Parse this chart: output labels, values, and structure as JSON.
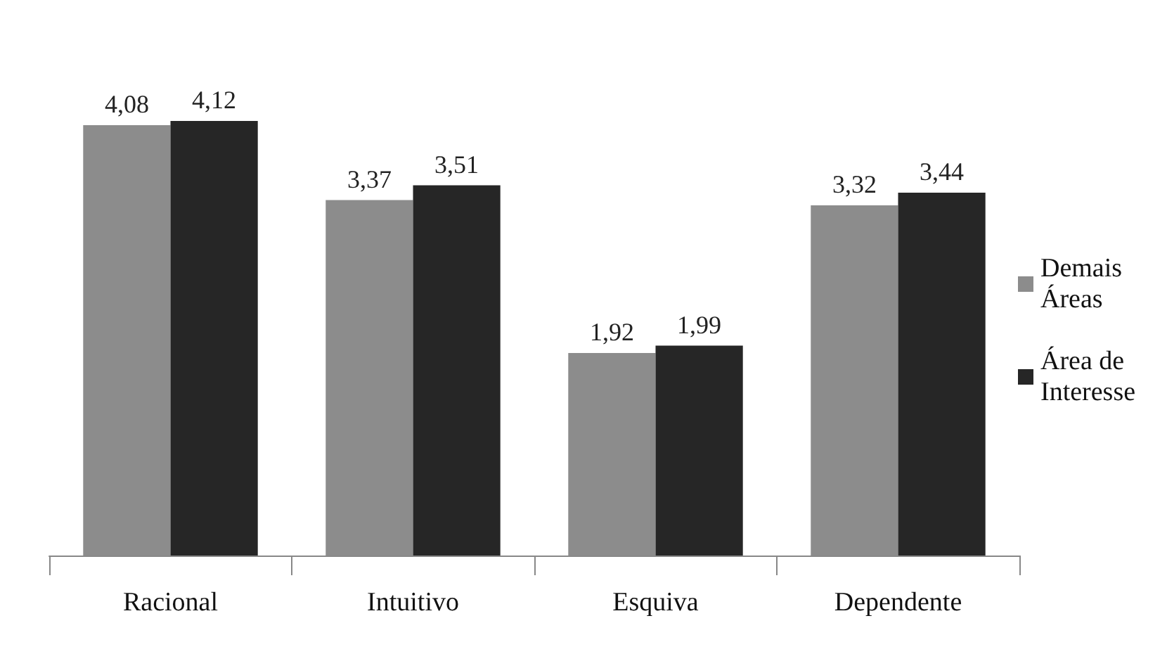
{
  "chart_data": {
    "type": "bar",
    "categories": [
      "Racional",
      "Intuitivo",
      "Esquiva",
      "Dependente"
    ],
    "series": [
      {
        "name": "Demais Áreas",
        "color": "#8c8c8c",
        "values": [
          4.08,
          3.37,
          1.92,
          3.32
        ],
        "value_labels": [
          "4,08",
          "3,37",
          "1,92",
          "3,32"
        ]
      },
      {
        "name": "Área de Interesse",
        "color": "#262626",
        "values": [
          4.12,
          3.51,
          1.99,
          3.44
        ],
        "value_labels": [
          "4,12",
          "3,51",
          "1,99",
          "3,44"
        ]
      }
    ],
    "legend": "right",
    "grid": false
  }
}
